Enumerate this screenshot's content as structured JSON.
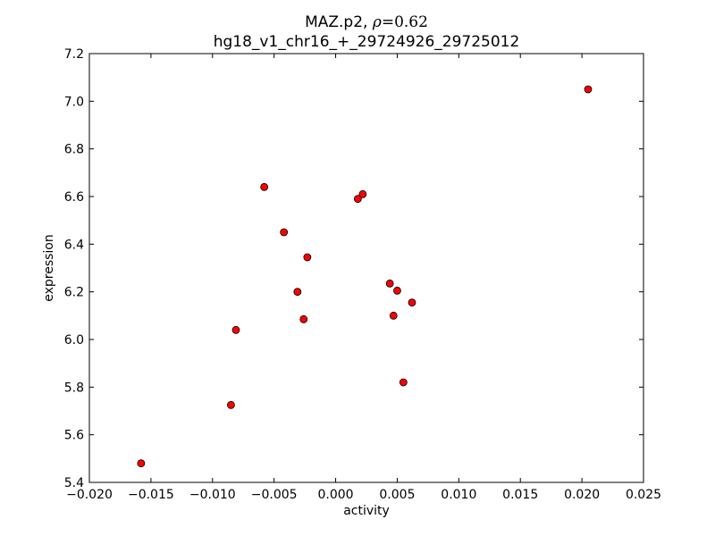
{
  "chart_data": {
    "type": "scatter",
    "title_prefix": "MAZ.p2, ",
    "title_rho_symbol": "ρ",
    "title_rho_eq": "=",
    "title_rho_value": "0.62",
    "subtitle": "hg18_v1_chr16_+_29724926_29725012",
    "xlabel": "activity",
    "ylabel": "expression",
    "xlim": [
      -0.02,
      0.025
    ],
    "ylim": [
      5.4,
      7.2
    ],
    "x_ticks": [
      -0.02,
      -0.015,
      -0.01,
      -0.005,
      0.0,
      0.005,
      0.01,
      0.015,
      0.02,
      0.025
    ],
    "x_tick_labels": [
      "−0.020",
      "−0.015",
      "−0.010",
      "−0.005",
      "0.000",
      "0.005",
      "0.010",
      "0.015",
      "0.020",
      "0.025"
    ],
    "y_ticks": [
      5.4,
      5.6,
      5.8,
      6.0,
      6.2,
      6.4,
      6.6,
      6.8,
      7.0,
      7.2
    ],
    "y_tick_labels": [
      "5.4",
      "5.6",
      "5.8",
      "6.0",
      "6.2",
      "6.4",
      "6.6",
      "6.8",
      "7.0",
      "7.2"
    ],
    "grid": false,
    "marker_color": "#ff0000",
    "marker_edge_color": "#000000",
    "points": [
      {
        "x": -0.0158,
        "y": 5.48
      },
      {
        "x": -0.0085,
        "y": 5.725
      },
      {
        "x": -0.0081,
        "y": 6.04
      },
      {
        "x": -0.0058,
        "y": 6.64
      },
      {
        "x": -0.0042,
        "y": 6.45
      },
      {
        "x": -0.0031,
        "y": 6.2
      },
      {
        "x": -0.0026,
        "y": 6.085
      },
      {
        "x": -0.0023,
        "y": 6.345
      },
      {
        "x": 0.0018,
        "y": 6.59
      },
      {
        "x": 0.0022,
        "y": 6.61
      },
      {
        "x": 0.0044,
        "y": 6.235
      },
      {
        "x": 0.0047,
        "y": 6.1
      },
      {
        "x": 0.005,
        "y": 6.205
      },
      {
        "x": 0.0055,
        "y": 5.82
      },
      {
        "x": 0.0062,
        "y": 6.155
      },
      {
        "x": 0.0205,
        "y": 7.05
      }
    ]
  }
}
